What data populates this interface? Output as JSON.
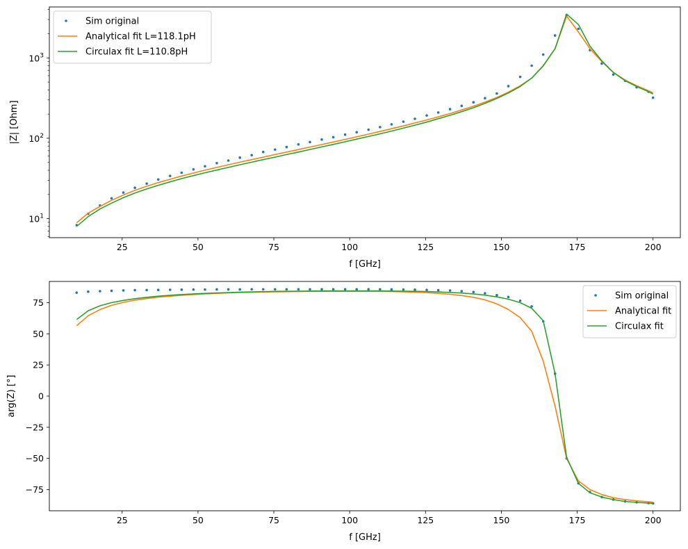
{
  "chart_data": [
    {
      "type": "line",
      "xlabel": "f [GHz]",
      "ylabel": "|Z| [Ohm]",
      "yscale": "log",
      "xlim": [
        1.0,
        209.0
      ],
      "ylim": [
        5.8,
        4300
      ],
      "xticks": [
        25,
        50,
        75,
        100,
        125,
        150,
        175,
        200
      ],
      "xtick_labels": [
        "25",
        "50",
        "75",
        "100",
        "125",
        "150",
        "175",
        "200"
      ],
      "ytick_sup": [
        {
          "value": 10,
          "base": "10",
          "exp": "1"
        },
        {
          "value": 100,
          "base": "10",
          "exp": "2"
        },
        {
          "value": 1000,
          "base": "10",
          "exp": "3"
        }
      ],
      "legend": {
        "position": "upper-left"
      },
      "grid": false,
      "series": [
        {
          "name": "Sim original",
          "style": "dots",
          "color": "#1f77b4",
          "x": [
            10,
            13.8,
            17.7,
            21.5,
            25.4,
            29.2,
            33.1,
            36.9,
            40.8,
            44.6,
            48.5,
            52.3,
            56.2,
            60,
            63.8,
            67.7,
            71.5,
            75.4,
            79.2,
            83.1,
            86.9,
            90.8,
            94.6,
            98.5,
            102.3,
            106.2,
            110,
            113.8,
            117.7,
            121.5,
            125.4,
            129.2,
            133.1,
            136.9,
            140.8,
            144.6,
            148.5,
            152.3,
            156.2,
            160,
            163.8,
            167.7,
            171.5,
            175.4,
            179.2,
            183.1,
            186.9,
            190.8,
            194.6,
            198.5,
            200
          ],
          "values": [
            8.3,
            11.5,
            14.6,
            17.9,
            21.1,
            24.2,
            27.3,
            30.7,
            34,
            37.3,
            41,
            44.8,
            49,
            52.8,
            57.4,
            61.6,
            67.5,
            72.3,
            77.8,
            83.9,
            89.6,
            96.5,
            103,
            111,
            118.8,
            127.7,
            137.7,
            149,
            161,
            174.8,
            192,
            209,
            230,
            253,
            280,
            315,
            360,
            445,
            580,
            800,
            1100,
            1900,
            3400,
            2300,
            1250,
            850,
            620,
            520,
            430,
            380,
            320
          ]
        },
        {
          "name": "Analytical fit  L=118.1pH",
          "style": "line",
          "color": "#ff7f0e",
          "x": [
            10,
            13.8,
            17.7,
            21.5,
            25.4,
            29.2,
            33.1,
            36.9,
            40.8,
            44.6,
            48.5,
            52.3,
            56.2,
            60,
            63.8,
            67.7,
            71.5,
            75.4,
            79.2,
            83.1,
            86.9,
            90.8,
            94.6,
            98.5,
            102.3,
            106.2,
            110,
            113.8,
            117.7,
            121.5,
            125.4,
            129.2,
            133.1,
            136.9,
            140.8,
            144.6,
            148.5,
            152.3,
            156.2,
            160,
            163.8,
            167.7,
            171.5,
            175.4,
            179.2,
            183.1,
            186.9,
            190.8,
            194.6,
            198.5,
            200
          ],
          "values": [
            8.9,
            11.7,
            14.2,
            16.9,
            19.7,
            22.5,
            25.3,
            28.1,
            30.9,
            33.9,
            36.9,
            40.1,
            43.4,
            46.8,
            50.4,
            54.2,
            58.3,
            62.7,
            67.4,
            72.4,
            77.8,
            83.6,
            89.9,
            96.8,
            104.3,
            112.5,
            121.5,
            131.4,
            142.5,
            155,
            169,
            185,
            203,
            225,
            250,
            282,
            322,
            375,
            450,
            560,
            790,
            1300,
            3300,
            2100,
            1300,
            900,
            660,
            530,
            450,
            390,
            365
          ]
        },
        {
          "name": "Circulax fit  L=110.8pH",
          "style": "line",
          "color": "#2ca02c",
          "x": [
            10,
            13.8,
            17.7,
            21.5,
            25.4,
            29.2,
            33.1,
            36.9,
            40.8,
            44.6,
            48.5,
            52.3,
            56.2,
            60,
            63.8,
            67.7,
            71.5,
            75.4,
            79.2,
            83.1,
            86.9,
            90.8,
            94.6,
            98.5,
            102.3,
            106.2,
            110,
            113.8,
            117.7,
            121.5,
            125.4,
            129.2,
            133.1,
            136.9,
            140.8,
            144.6,
            148.5,
            152.3,
            156.2,
            160,
            163.8,
            167.7,
            171.5,
            175.4,
            179.2,
            183.1,
            186.9,
            190.8,
            194.6,
            198.5,
            200
          ],
          "values": [
            8.0,
            10.6,
            13.2,
            15.6,
            18.2,
            20.8,
            23.4,
            26,
            28.7,
            31.5,
            34.3,
            37.2,
            40.2,
            43.4,
            46.8,
            50.4,
            54.2,
            58.3,
            62.7,
            67.4,
            72.5,
            78,
            83.9,
            90.4,
            97.5,
            105.2,
            113.6,
            123,
            133.5,
            145.5,
            159,
            175,
            193,
            214,
            240,
            272,
            313,
            366,
            440,
            560,
            800,
            1300,
            3500,
            2600,
            1400,
            920,
            660,
            520,
            440,
            380,
            355
          ]
        }
      ]
    },
    {
      "type": "line",
      "xlabel": "f [GHz]",
      "ylabel": "arg(Z) [°]",
      "xlim": [
        1.0,
        209.0
      ],
      "ylim": [
        -92,
        92
      ],
      "xticks": [
        25,
        50,
        75,
        100,
        125,
        150,
        175,
        200
      ],
      "xtick_labels": [
        "25",
        "50",
        "75",
        "100",
        "125",
        "150",
        "175",
        "200"
      ],
      "yticks": [
        -75,
        -50,
        -25,
        0,
        25,
        50,
        75
      ],
      "ytick_labels": [
        "−75",
        "−50",
        "−25",
        "0",
        "25",
        "50",
        "75"
      ],
      "legend": {
        "position": "upper-right"
      },
      "grid": false,
      "series": [
        {
          "name": "Sim original",
          "style": "dots",
          "color": "#1f77b4",
          "x": [
            10,
            13.8,
            17.7,
            21.5,
            25.4,
            29.2,
            33.1,
            36.9,
            40.8,
            44.6,
            48.5,
            52.3,
            56.2,
            60,
            63.8,
            67.7,
            71.5,
            75.4,
            79.2,
            83.1,
            86.9,
            90.8,
            94.6,
            98.5,
            102.3,
            106.2,
            110,
            113.8,
            117.7,
            121.5,
            125.4,
            129.2,
            133.1,
            136.9,
            140.8,
            144.6,
            148.5,
            152.3,
            156.2,
            160,
            163.8,
            167.7,
            171.5,
            175.4,
            179.2,
            183.1,
            186.9,
            190.8,
            194.6,
            198.5,
            200
          ],
          "values": [
            83,
            83.8,
            84.2,
            84.5,
            84.8,
            85,
            85.1,
            85.2,
            85.3,
            85.4,
            85.5,
            85.5,
            85.6,
            85.6,
            85.6,
            85.7,
            85.7,
            85.7,
            85.7,
            85.7,
            85.7,
            85.7,
            85.7,
            85.7,
            85.7,
            85.7,
            85.7,
            85.6,
            85.5,
            85.4,
            85.2,
            85,
            84.7,
            84.2,
            83.5,
            82.5,
            81,
            79.5,
            76.5,
            72,
            60,
            18,
            -50,
            -70,
            -77,
            -81,
            -83,
            -84.5,
            -85.2,
            -85.8,
            -86
          ]
        },
        {
          "name": "Analytical fit",
          "style": "line",
          "color": "#ff7f0e",
          "x": [
            10,
            13.8,
            17.7,
            21.5,
            25.4,
            29.2,
            33.1,
            36.9,
            40.8,
            44.6,
            48.5,
            52.3,
            56.2,
            60,
            63.8,
            67.7,
            71.5,
            75.4,
            79.2,
            83.1,
            86.9,
            90.8,
            94.6,
            98.5,
            102.3,
            106.2,
            110,
            113.8,
            117.7,
            121.5,
            125.4,
            129.2,
            133.1,
            136.9,
            140.8,
            144.6,
            148.5,
            152.3,
            156.2,
            160,
            163.8,
            167.7,
            171.5,
            175.4,
            179.2,
            183.1,
            186.9,
            190.8,
            194.6,
            198.5,
            200
          ],
          "values": [
            56.5,
            64.5,
            69.5,
            72.8,
            75.2,
            77,
            78.3,
            79.4,
            80.2,
            80.9,
            81.5,
            82,
            82.4,
            82.8,
            83.1,
            83.3,
            83.5,
            83.7,
            83.8,
            83.9,
            84,
            84.1,
            84.1,
            84.1,
            84.1,
            84.1,
            84,
            83.9,
            83.7,
            83.4,
            83,
            82.4,
            81.7,
            80.7,
            79.3,
            77.2,
            74,
            69.5,
            63,
            52,
            28,
            -8,
            -50,
            -68,
            -75,
            -79,
            -81.5,
            -83,
            -84,
            -84.8,
            -85.2
          ]
        },
        {
          "name": "Circulax fit",
          "style": "line",
          "color": "#2ca02c",
          "x": [
            10,
            13.8,
            17.7,
            21.5,
            25.4,
            29.2,
            33.1,
            36.9,
            40.8,
            44.6,
            48.5,
            52.3,
            56.2,
            60,
            63.8,
            67.7,
            71.5,
            75.4,
            79.2,
            83.1,
            86.9,
            90.8,
            94.6,
            98.5,
            102.3,
            106.2,
            110,
            113.8,
            117.7,
            121.5,
            125.4,
            129.2,
            133.1,
            136.9,
            140.8,
            144.6,
            148.5,
            152.3,
            156.2,
            160,
            163.8,
            167.7,
            171.5,
            175.4,
            179.2,
            183.1,
            186.9,
            190.8,
            194.6,
            198.5,
            200
          ],
          "values": [
            61.5,
            68.5,
            72.5,
            75,
            76.8,
            78.2,
            79.3,
            80.2,
            80.9,
            81.5,
            82,
            82.4,
            82.8,
            83.1,
            83.4,
            83.6,
            83.8,
            84,
            84.1,
            84.2,
            84.3,
            84.4,
            84.4,
            84.4,
            84.4,
            84.4,
            84.4,
            84.3,
            84.2,
            84.1,
            83.9,
            83.6,
            83.2,
            82.7,
            82,
            81,
            79.6,
            77.8,
            75,
            70.5,
            60.5,
            18,
            -49,
            -70,
            -77.5,
            -81,
            -83,
            -84.5,
            -85.3,
            -85.8,
            -86
          ]
        }
      ]
    }
  ]
}
